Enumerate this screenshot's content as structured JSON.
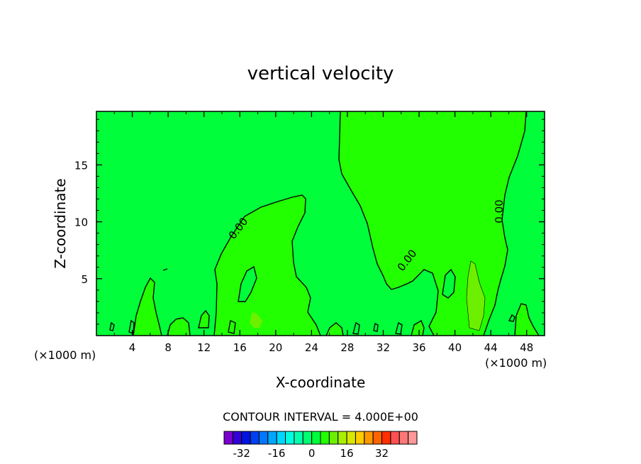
{
  "chart_data": {
    "type": "contour",
    "title": "vertical velocity",
    "xlabel": "X-coordinate",
    "ylabel": "Z-coordinate",
    "x_unit_left": "(×1000 m)",
    "x_unit_right": "(×1000 m)",
    "xlim": [
      0,
      50
    ],
    "ylim": [
      0,
      19.7
    ],
    "x_ticks": [
      4,
      8,
      12,
      16,
      20,
      24,
      28,
      32,
      36,
      40,
      44,
      48
    ],
    "y_ticks": [
      5,
      10,
      15
    ],
    "contour_label": "0.00",
    "contour_interval_text": "CONTOUR INTERVAL = 4.000E+00",
    "background_color": "#00ff3a",
    "positive_region_color": "#22ff00",
    "strong_positive_color": "#6cf000",
    "colorbar": {
      "colors": [
        "#7a00d0",
        "#3500d8",
        "#0014e0",
        "#0040f0",
        "#0078ff",
        "#00a8ff",
        "#00d8ff",
        "#00ffe0",
        "#00ffb0",
        "#00ff70",
        "#00ff3a",
        "#22ff00",
        "#6cf000",
        "#a8f000",
        "#d8e800",
        "#ffcc00",
        "#ff9800",
        "#ff6400",
        "#ff3000",
        "#ff5050",
        "#ff7878",
        "#ff9898"
      ],
      "tick_labels": [
        "-32",
        "-16",
        "0",
        "16",
        "32"
      ],
      "tick_values": [
        -32,
        -16,
        0,
        16,
        32
      ],
      "min": -40,
      "max": 48
    }
  }
}
